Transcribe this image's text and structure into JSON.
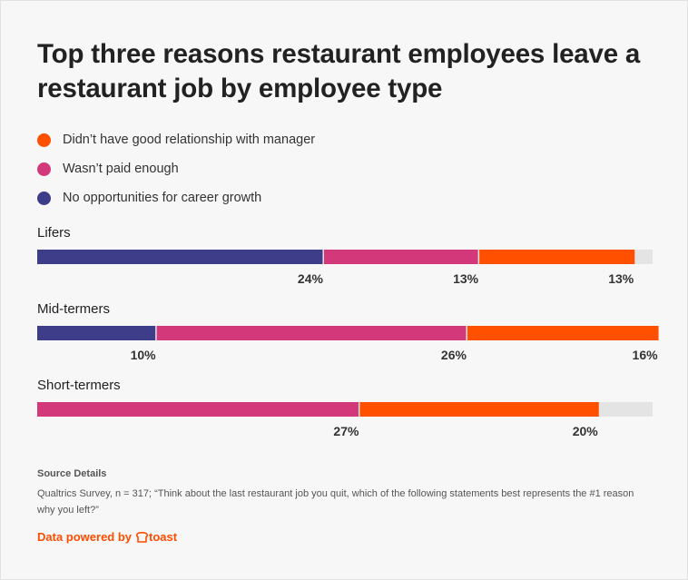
{
  "title": "Top three reasons restaurant employees leave a restaurant job by employee type",
  "legend": [
    {
      "label": "Didn’t have good relationship with manager",
      "color": "#ff5000"
    },
    {
      "label": "Wasn’t paid enough",
      "color": "#d3397a"
    },
    {
      "label": "No opportunities for career growth",
      "color": "#3d3d8a"
    }
  ],
  "colors": {
    "career": "#3d3d8a",
    "paid": "#d3397a",
    "manager": "#ff5000",
    "remainder": "#e4e4e4"
  },
  "chart_data": {
    "type": "bar",
    "orientation": "horizontal-stacked",
    "xlim": [
      0,
      51.5
    ],
    "series_order": [
      "No opportunities for career growth",
      "Wasn’t paid enough",
      "Didn’t have good relationship with manager"
    ],
    "groups": [
      {
        "label": "Lifers",
        "values": [
          {
            "series": "No opportunities for career growth",
            "value": 24,
            "label": "24%"
          },
          {
            "series": "Wasn’t paid enough",
            "value": 13,
            "label": "13%"
          },
          {
            "series": "Didn’t have good relationship with manager",
            "value": 13,
            "label": "13%"
          }
        ]
      },
      {
        "label": "Mid-termers",
        "values": [
          {
            "series": "No opportunities for career growth",
            "value": 10,
            "label": "10%"
          },
          {
            "series": "Wasn’t paid enough",
            "value": 26,
            "label": "26%"
          },
          {
            "series": "Didn’t have good relationship with manager",
            "value": 16,
            "label": "16%"
          }
        ]
      },
      {
        "label": "Short-termers",
        "values": [
          {
            "series": "Wasn’t paid enough",
            "value": 27,
            "label": "27%"
          },
          {
            "series": "Didn’t have good relationship with manager",
            "value": 20,
            "label": "20%"
          }
        ]
      }
    ]
  },
  "source": {
    "title": "Source Details",
    "text": "Qualtrics Survey, n = 317; “Think about the last restaurant job you quit, which of the following statements best represents the #1 reason why you left?”"
  },
  "brand": {
    "prefix": "Data powered by",
    "name": "toast"
  }
}
